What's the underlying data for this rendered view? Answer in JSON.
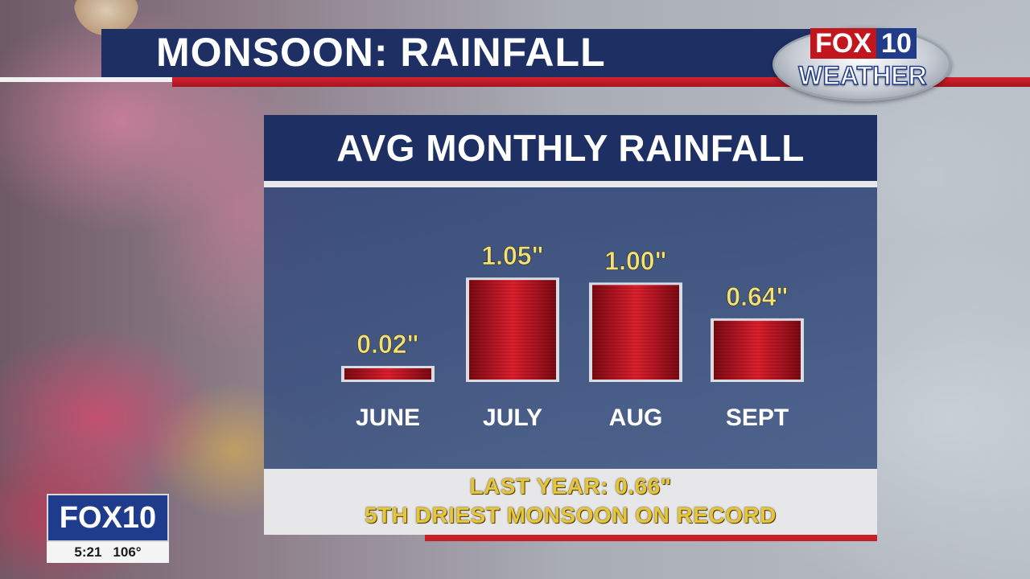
{
  "header": {
    "title": "MONSOON: RAINFALL"
  },
  "logo": {
    "top_left": "FOX",
    "top_right": "10",
    "bottom": "WEATHER"
  },
  "panel": {
    "title": "AVG MONTHLY RAINFALL",
    "footer_line1": "LAST YEAR: 0.66\"",
    "footer_line2": "5TH DRIEST MONSOON ON RECORD"
  },
  "bug": {
    "logo": "FOX10",
    "time": "5:21",
    "temp": "106°"
  },
  "chart_data": {
    "type": "bar",
    "title": "AVG MONTHLY RAINFALL",
    "categories": [
      "JUNE",
      "JULY",
      "AUG",
      "SEPT"
    ],
    "values": [
      0.02,
      1.05,
      1.0,
      0.64
    ],
    "value_labels": [
      "0.02\"",
      "1.05\"",
      "1.00\"",
      "0.64\""
    ],
    "bar_color": "#c8101e",
    "label_color": "#f2e07a",
    "ylim": [
      0,
      1.1
    ],
    "grid": false
  }
}
